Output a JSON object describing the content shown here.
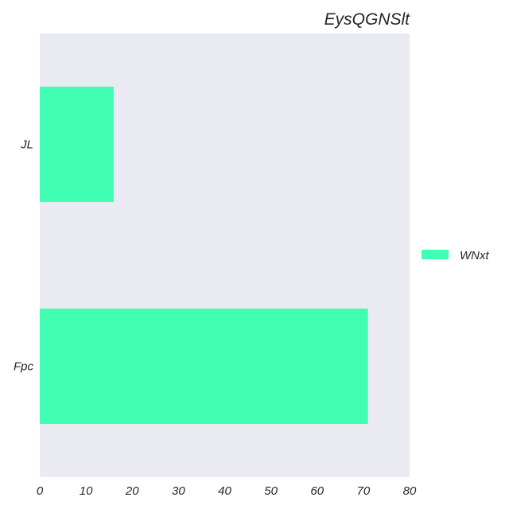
{
  "chart_data": {
    "type": "bar",
    "orientation": "horizontal",
    "title": "EysQGNSlt",
    "xlabel": "",
    "ylabel": "",
    "categories": [
      "JL",
      "Fpc"
    ],
    "series": [
      {
        "name": "WNxt",
        "values": [
          16,
          71
        ],
        "color": "#40ffb2"
      }
    ],
    "xlim": [
      0,
      80
    ],
    "xticks": [
      0,
      10,
      20,
      30,
      40,
      50,
      60,
      70,
      80
    ],
    "grid": false,
    "legend_position": "right",
    "plot_background": "#eaeaf2"
  }
}
